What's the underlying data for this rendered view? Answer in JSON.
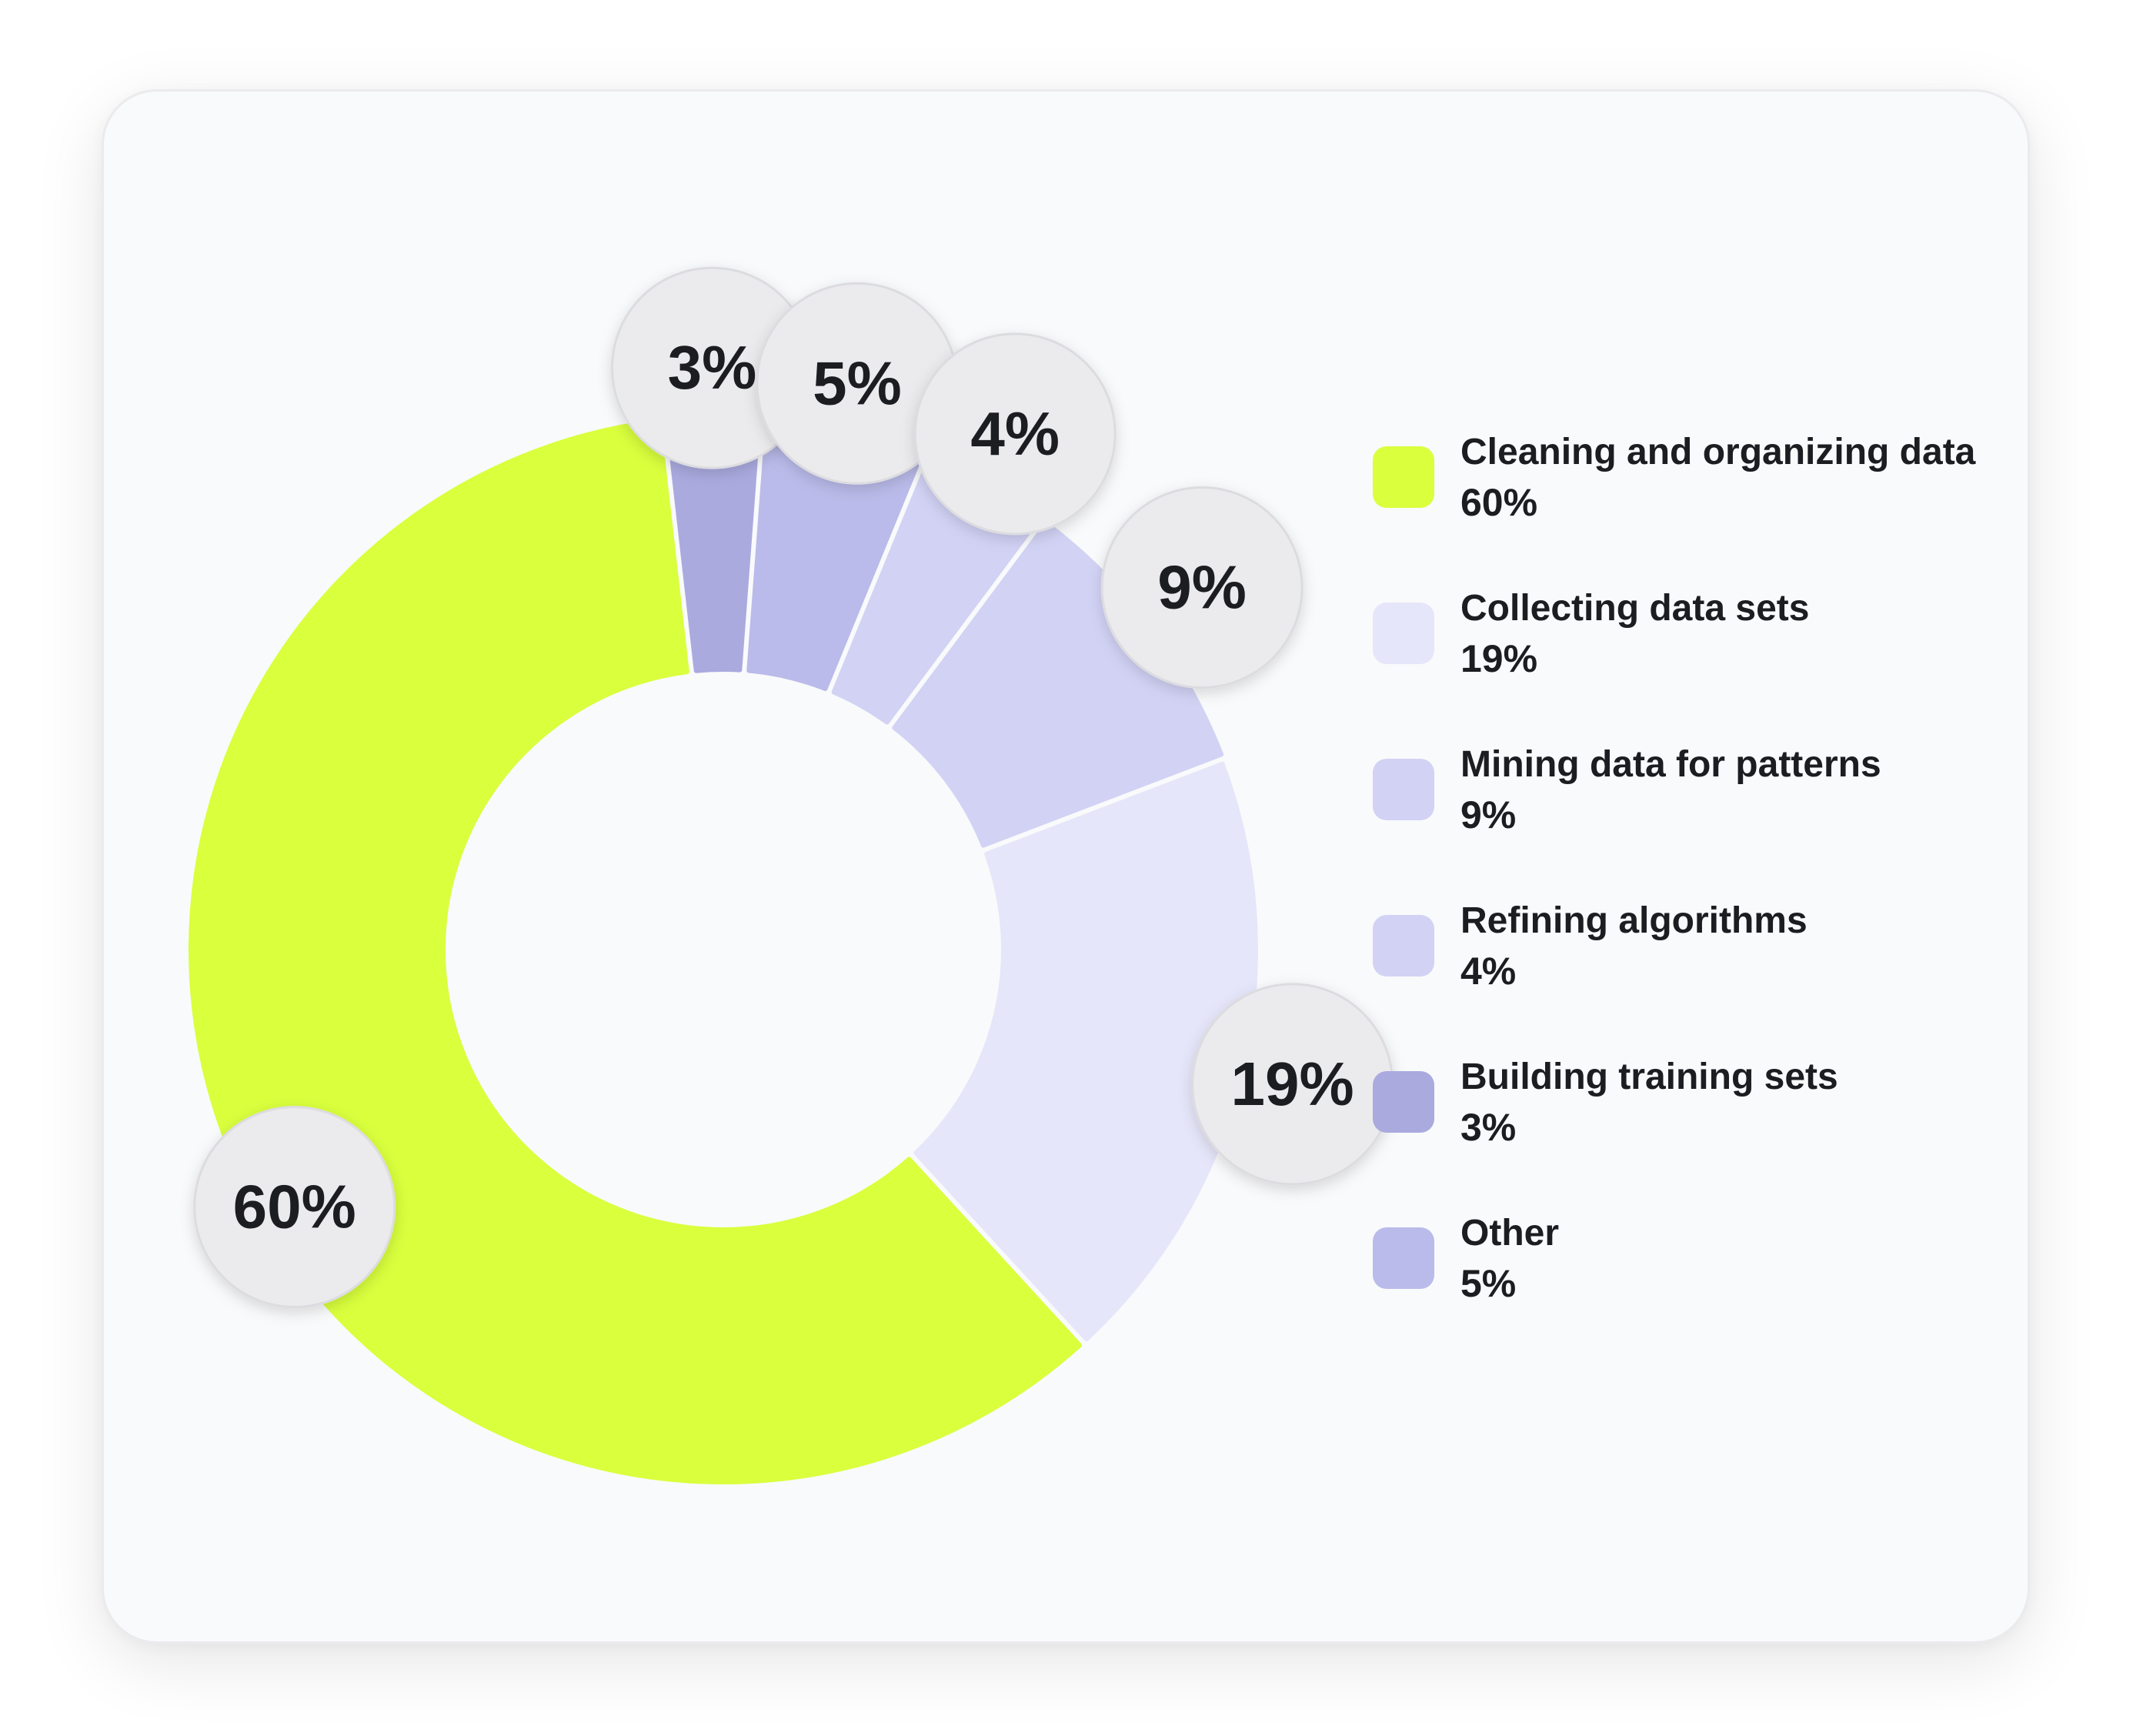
{
  "chart_data": {
    "type": "pie",
    "variant": "donut",
    "start_angle_deg": 190,
    "segments": [
      {
        "label": "Building training sets",
        "value": 3,
        "display": "3%",
        "color": "#aaaadf"
      },
      {
        "label": "Other",
        "value": 5,
        "display": "5%",
        "color": "#babbea"
      },
      {
        "label": "Refining algorithms",
        "value": 4,
        "display": "4%",
        "color": "#d2d2f5"
      },
      {
        "label": "Mining data for patterns",
        "value": 9,
        "display": "9%",
        "color": "#d2d2f5"
      },
      {
        "label": "Collecting data sets",
        "value": 19,
        "display": "19%",
        "color": "#e6e6fa"
      },
      {
        "label": "Cleaning and organizing data",
        "value": 60,
        "display": "60%",
        "color": "#d9ff3d"
      }
    ],
    "legend": {
      "placement": "right",
      "items": [
        {
          "label": "Cleaning and organizing data",
          "value": "60%",
          "color": "#d9ff3d"
        },
        {
          "label": "Collecting data sets",
          "value": "19%",
          "color": "#e6e6fa"
        },
        {
          "label": "Mining data for patterns",
          "value": "9%",
          "color": "#d2d2f5"
        },
        {
          "label": "Refining algorithms",
          "value": "4%",
          "color": "#d2d2f5"
        },
        {
          "label": "Building training sets",
          "value": "3%",
          "color": "#aaaadf"
        },
        {
          "label": "Other",
          "value": "5%",
          "color": "#babbea"
        }
      ]
    }
  }
}
